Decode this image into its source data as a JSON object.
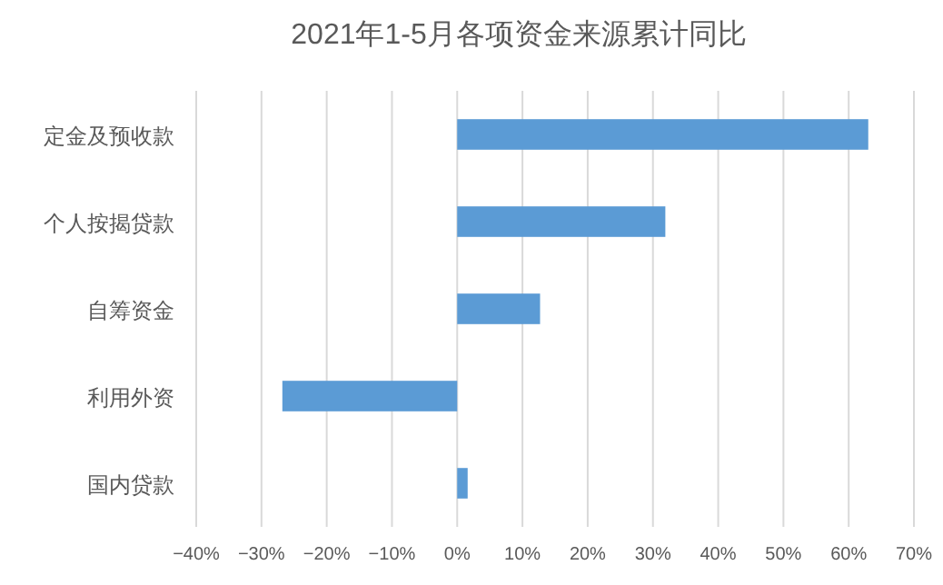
{
  "chart_data": {
    "type": "bar",
    "orientation": "horizontal",
    "title": "2021年1-5月各项资金来源累计同比",
    "categories": [
      "定金及预收款",
      "个人按揭贷款",
      "自筹资金",
      "利用外资",
      "国内贷款"
    ],
    "values": [
      63.0,
      31.9,
      12.7,
      -26.8,
      1.6
    ],
    "color": "#5b9bd5",
    "xlim": [
      -40,
      70
    ],
    "xticks": [
      {
        "value": -40,
        "label": "−40%"
      },
      {
        "value": -30,
        "label": "−30%"
      },
      {
        "value": -20,
        "label": "−20%"
      },
      {
        "value": -10,
        "label": "−10%"
      },
      {
        "value": 0,
        "label": "0%"
      },
      {
        "value": 10,
        "label": "10%"
      },
      {
        "value": 20,
        "label": "20%"
      },
      {
        "value": 30,
        "label": "30%"
      },
      {
        "value": 40,
        "label": "40%"
      },
      {
        "value": 50,
        "label": "50%"
      },
      {
        "value": 60,
        "label": "60%"
      },
      {
        "value": 70,
        "label": "70%"
      }
    ],
    "grid": "x"
  }
}
